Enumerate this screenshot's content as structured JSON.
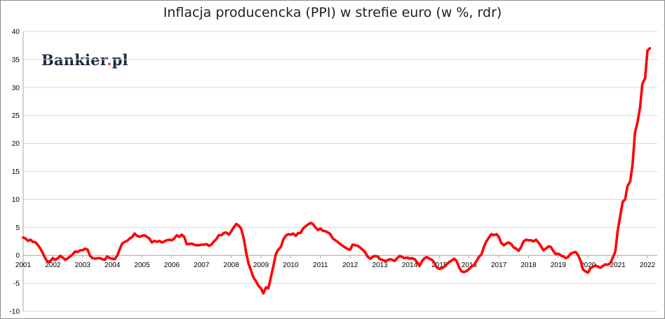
{
  "chart_data": {
    "type": "line",
    "title": "Inflacja producencka (PPI) w strefie euro (w %, rdr)",
    "xlabel": "",
    "ylabel": "",
    "ylim": [
      -10,
      40
    ],
    "yticks": [
      -10,
      -5,
      0,
      5,
      10,
      15,
      20,
      25,
      30,
      35,
      40
    ],
    "xlim": [
      2001,
      2022.33
    ],
    "xticks": [
      "2001",
      "2002",
      "2003",
      "2004",
      "2005",
      "2006",
      "2007",
      "2008",
      "2009",
      "2010",
      "2011",
      "2012",
      "2013",
      "2014",
      "2015",
      "2016",
      "2017",
      "2018",
      "2019",
      "2020",
      "2021",
      "2022"
    ],
    "grid": "horizontal",
    "line_color": "#ff0000",
    "series": [
      {
        "points": [
          [
            2001.0,
            3.2
          ],
          [
            2001.08,
            3.0
          ],
          [
            2001.17,
            2.6
          ],
          [
            2001.25,
            2.8
          ],
          [
            2001.33,
            2.4
          ],
          [
            2001.42,
            2.3
          ],
          [
            2001.5,
            1.8
          ],
          [
            2001.58,
            1.2
          ],
          [
            2001.67,
            0.3
          ],
          [
            2001.75,
            -0.6
          ],
          [
            2001.83,
            -1.2
          ],
          [
            2001.92,
            -1.0
          ],
          [
            2002.0,
            -0.5
          ],
          [
            2002.08,
            -0.8
          ],
          [
            2002.17,
            -0.5
          ],
          [
            2002.25,
            -0.1
          ],
          [
            2002.33,
            -0.4
          ],
          [
            2002.42,
            -0.8
          ],
          [
            2002.5,
            -0.5
          ],
          [
            2002.58,
            -0.2
          ],
          [
            2002.67,
            0.2
          ],
          [
            2002.75,
            0.7
          ],
          [
            2002.83,
            0.6
          ],
          [
            2002.92,
            0.9
          ],
          [
            2003.0,
            0.9
          ],
          [
            2003.08,
            1.2
          ],
          [
            2003.17,
            1.0
          ],
          [
            2003.25,
            -0.1
          ],
          [
            2003.33,
            -0.5
          ],
          [
            2003.42,
            -0.6
          ],
          [
            2003.5,
            -0.5
          ],
          [
            2003.58,
            -0.5
          ],
          [
            2003.67,
            -0.7
          ],
          [
            2003.75,
            -0.8
          ],
          [
            2003.83,
            -0.2
          ],
          [
            2003.92,
            -0.5
          ],
          [
            2004.0,
            -0.6
          ],
          [
            2004.08,
            -0.7
          ],
          [
            2004.17,
            0.0
          ],
          [
            2004.25,
            1.1
          ],
          [
            2004.33,
            2.1
          ],
          [
            2004.42,
            2.4
          ],
          [
            2004.5,
            2.6
          ],
          [
            2004.58,
            3.0
          ],
          [
            2004.67,
            3.3
          ],
          [
            2004.75,
            3.9
          ],
          [
            2004.83,
            3.5
          ],
          [
            2004.92,
            3.3
          ],
          [
            2005.0,
            3.5
          ],
          [
            2005.08,
            3.6
          ],
          [
            2005.17,
            3.3
          ],
          [
            2005.25,
            3.0
          ],
          [
            2005.33,
            2.3
          ],
          [
            2005.42,
            2.6
          ],
          [
            2005.5,
            2.4
          ],
          [
            2005.58,
            2.6
          ],
          [
            2005.67,
            2.3
          ],
          [
            2005.75,
            2.5
          ],
          [
            2005.83,
            2.7
          ],
          [
            2005.92,
            2.8
          ],
          [
            2006.0,
            2.7
          ],
          [
            2006.08,
            3.0
          ],
          [
            2006.17,
            3.6
          ],
          [
            2006.25,
            3.3
          ],
          [
            2006.33,
            3.7
          ],
          [
            2006.42,
            3.3
          ],
          [
            2006.5,
            2.0
          ],
          [
            2006.58,
            2.0
          ],
          [
            2006.67,
            2.1
          ],
          [
            2006.75,
            1.9
          ],
          [
            2006.83,
            1.8
          ],
          [
            2006.92,
            1.8
          ],
          [
            2007.0,
            1.9
          ],
          [
            2007.08,
            1.9
          ],
          [
            2007.17,
            2.0
          ],
          [
            2007.25,
            1.7
          ],
          [
            2007.33,
            1.9
          ],
          [
            2007.42,
            2.5
          ],
          [
            2007.5,
            2.9
          ],
          [
            2007.58,
            3.6
          ],
          [
            2007.67,
            3.6
          ],
          [
            2007.75,
            4.0
          ],
          [
            2007.83,
            4.1
          ],
          [
            2007.92,
            3.7
          ],
          [
            2008.0,
            4.3
          ],
          [
            2008.08,
            5.0
          ],
          [
            2008.17,
            5.6
          ],
          [
            2008.25,
            5.3
          ],
          [
            2008.33,
            4.8
          ],
          [
            2008.42,
            3.0
          ],
          [
            2008.5,
            0.5
          ],
          [
            2008.58,
            -1.5
          ],
          [
            2008.67,
            -2.8
          ],
          [
            2008.75,
            -4.0
          ],
          [
            2008.83,
            -4.6
          ],
          [
            2008.92,
            -5.5
          ],
          [
            2009.0,
            -5.9
          ],
          [
            2009.08,
            -6.8
          ],
          [
            2009.17,
            -5.7
          ],
          [
            2009.25,
            -5.9
          ],
          [
            2009.33,
            -4.0
          ],
          [
            2009.42,
            -1.8
          ],
          [
            2009.5,
            0.2
          ],
          [
            2009.58,
            1.0
          ],
          [
            2009.67,
            1.5
          ],
          [
            2009.75,
            2.8
          ],
          [
            2009.83,
            3.5
          ],
          [
            2009.92,
            3.8
          ],
          [
            2010.0,
            3.7
          ],
          [
            2010.08,
            3.9
          ],
          [
            2010.17,
            3.5
          ],
          [
            2010.25,
            4.0
          ],
          [
            2010.33,
            4.0
          ],
          [
            2010.42,
            4.8
          ],
          [
            2010.5,
            5.2
          ],
          [
            2010.58,
            5.5
          ],
          [
            2010.67,
            5.8
          ],
          [
            2010.75,
            5.6
          ],
          [
            2010.83,
            5.0
          ],
          [
            2010.92,
            4.5
          ],
          [
            2011.0,
            4.8
          ],
          [
            2011.08,
            4.4
          ],
          [
            2011.17,
            4.3
          ],
          [
            2011.25,
            4.1
          ],
          [
            2011.33,
            3.8
          ],
          [
            2011.42,
            3.0
          ],
          [
            2011.5,
            2.7
          ],
          [
            2011.58,
            2.4
          ],
          [
            2011.67,
            2.0
          ],
          [
            2011.75,
            1.7
          ],
          [
            2011.83,
            1.4
          ],
          [
            2011.92,
            1.1
          ],
          [
            2012.0,
            1.0
          ],
          [
            2012.08,
            1.9
          ],
          [
            2012.17,
            1.8
          ],
          [
            2012.25,
            1.7
          ],
          [
            2012.33,
            1.4
          ],
          [
            2012.42,
            1.0
          ],
          [
            2012.5,
            0.6
          ],
          [
            2012.58,
            -0.2
          ],
          [
            2012.67,
            -0.6
          ],
          [
            2012.75,
            -0.3
          ],
          [
            2012.83,
            -0.1
          ],
          [
            2012.92,
            -0.2
          ],
          [
            2013.0,
            -0.7
          ],
          [
            2013.08,
            -0.8
          ],
          [
            2013.17,
            -1.0
          ],
          [
            2013.25,
            -0.9
          ],
          [
            2013.33,
            -0.7
          ],
          [
            2013.42,
            -0.8
          ],
          [
            2013.5,
            -1.0
          ],
          [
            2013.58,
            -0.5
          ],
          [
            2013.67,
            -0.1
          ],
          [
            2013.75,
            -0.3
          ],
          [
            2013.83,
            -0.5
          ],
          [
            2013.92,
            -0.4
          ],
          [
            2014.0,
            -0.6
          ],
          [
            2014.08,
            -0.5
          ],
          [
            2014.17,
            -0.7
          ],
          [
            2014.25,
            -1.2
          ],
          [
            2014.33,
            -1.9
          ],
          [
            2014.42,
            -1.0
          ],
          [
            2014.5,
            -0.5
          ],
          [
            2014.58,
            -0.3
          ],
          [
            2014.67,
            -0.6
          ],
          [
            2014.75,
            -0.8
          ],
          [
            2014.83,
            -1.3
          ],
          [
            2014.92,
            -2.2
          ],
          [
            2015.0,
            -2.4
          ],
          [
            2015.08,
            -2.3
          ],
          [
            2015.17,
            -2.0
          ],
          [
            2015.25,
            -1.6
          ],
          [
            2015.33,
            -1.2
          ],
          [
            2015.42,
            -0.9
          ],
          [
            2015.5,
            -0.6
          ],
          [
            2015.58,
            -1.0
          ],
          [
            2015.67,
            -2.2
          ],
          [
            2015.75,
            -2.9
          ],
          [
            2015.83,
            -3.0
          ],
          [
            2015.92,
            -2.8
          ],
          [
            2016.0,
            -2.4
          ],
          [
            2016.08,
            -2.0
          ],
          [
            2016.17,
            -1.7
          ],
          [
            2016.25,
            -1.0
          ],
          [
            2016.33,
            -0.3
          ],
          [
            2016.42,
            0.2
          ],
          [
            2016.5,
            1.5
          ],
          [
            2016.58,
            2.5
          ],
          [
            2016.67,
            3.2
          ],
          [
            2016.75,
            3.8
          ],
          [
            2016.83,
            3.6
          ],
          [
            2016.92,
            3.8
          ],
          [
            2017.0,
            3.3
          ],
          [
            2017.08,
            2.2
          ],
          [
            2017.17,
            1.8
          ],
          [
            2017.25,
            2.1
          ],
          [
            2017.33,
            2.3
          ],
          [
            2017.42,
            2.0
          ],
          [
            2017.5,
            1.4
          ],
          [
            2017.58,
            1.2
          ],
          [
            2017.67,
            0.8
          ],
          [
            2017.75,
            1.5
          ],
          [
            2017.83,
            2.5
          ],
          [
            2017.92,
            2.8
          ],
          [
            2018.0,
            2.7
          ],
          [
            2018.08,
            2.7
          ],
          [
            2018.17,
            2.5
          ],
          [
            2018.25,
            2.8
          ],
          [
            2018.33,
            2.3
          ],
          [
            2018.42,
            1.6
          ],
          [
            2018.5,
            0.9
          ],
          [
            2018.58,
            1.2
          ],
          [
            2018.67,
            1.6
          ],
          [
            2018.75,
            1.5
          ],
          [
            2018.83,
            0.8
          ],
          [
            2018.92,
            0.2
          ],
          [
            2019.0,
            0.3
          ],
          [
            2019.08,
            0.0
          ],
          [
            2019.17,
            -0.2
          ],
          [
            2019.25,
            -0.5
          ],
          [
            2019.33,
            -0.3
          ],
          [
            2019.42,
            0.3
          ],
          [
            2019.5,
            0.5
          ],
          [
            2019.58,
            0.6
          ],
          [
            2019.67,
            0.0
          ],
          [
            2019.75,
            -1.0
          ],
          [
            2019.83,
            -2.5
          ],
          [
            2019.92,
            -2.9
          ],
          [
            2020.0,
            -3.1
          ],
          [
            2020.08,
            -2.3
          ],
          [
            2020.17,
            -2.0
          ],
          [
            2020.25,
            -1.8
          ],
          [
            2020.33,
            -2.0
          ],
          [
            2020.42,
            -2.2
          ],
          [
            2020.5,
            -1.9
          ],
          [
            2020.58,
            -1.6
          ],
          [
            2020.67,
            -1.7
          ],
          [
            2020.75,
            -1.4
          ],
          [
            2020.83,
            -0.5
          ],
          [
            2020.92,
            0.7
          ],
          [
            2021.0,
            4.4
          ],
          [
            2021.08,
            6.9
          ],
          [
            2021.17,
            9.6
          ],
          [
            2021.25,
            10.0
          ],
          [
            2021.33,
            12.4
          ],
          [
            2021.42,
            13.2
          ],
          [
            2021.5,
            16.3
          ],
          [
            2021.58,
            21.9
          ],
          [
            2021.67,
            23.9
          ],
          [
            2021.75,
            26.4
          ],
          [
            2021.83,
            30.7
          ],
          [
            2021.92,
            31.6
          ],
          [
            2022.0,
            36.6
          ],
          [
            2022.08,
            37.0
          ]
        ]
      }
    ]
  },
  "brand": {
    "name": "Bankier",
    "dot": ".",
    "suffix": "pl"
  }
}
